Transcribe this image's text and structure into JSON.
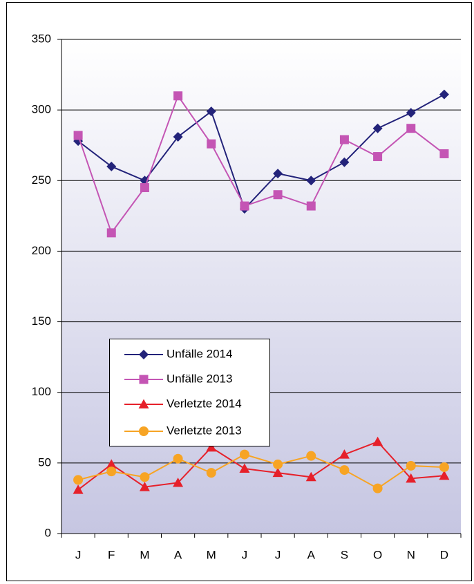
{
  "chart_data": {
    "type": "line",
    "categories": [
      "J",
      "F",
      "M",
      "A",
      "M",
      "J",
      "J",
      "A",
      "S",
      "O",
      "N",
      "D"
    ],
    "series": [
      {
        "name": "Unfälle 2014",
        "color": "#23237a",
        "marker": "diamond",
        "values": [
          278,
          260,
          250,
          281,
          299,
          230,
          255,
          250,
          263,
          287,
          298,
          311
        ]
      },
      {
        "name": "Unfälle 2013",
        "color": "#c455b4",
        "marker": "square",
        "values": [
          282,
          213,
          245,
          310,
          276,
          232,
          240,
          232,
          279,
          267,
          287,
          269
        ]
      },
      {
        "name": "Verletzte 2014",
        "color": "#e6202a",
        "marker": "triangle",
        "values": [
          31,
          49,
          33,
          36,
          61,
          46,
          43,
          40,
          56,
          65,
          39,
          41
        ]
      },
      {
        "name": "Verletzte 2013",
        "color": "#f7a424",
        "marker": "circle",
        "values": [
          38,
          44,
          40,
          53,
          43,
          56,
          49,
          55,
          45,
          32,
          48,
          47
        ]
      }
    ],
    "ylim": [
      0,
      350
    ],
    "yticks": [
      0,
      50,
      100,
      150,
      200,
      250,
      300,
      350
    ],
    "grid": true,
    "legend": "inside"
  }
}
